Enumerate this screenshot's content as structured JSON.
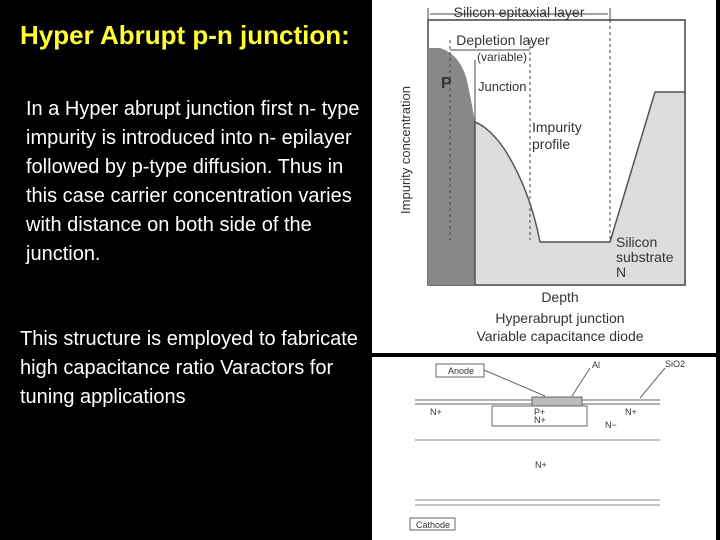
{
  "title": "Hyper Abrupt p-n junction:",
  "paragraphs": [
    "In a Hyper abrupt junction first n- type impurity is introduced into n- epilayer followed by p-type diffusion. Thus in this case carrier concentration varies with distance on both side of the junction.",
    "This structure is employed to fabricate high capacitance ratio Varactors for tuning applications"
  ],
  "figure_top": {
    "epitaxial_layer": "Silicon epitaxial layer",
    "depletion_layer": "Depletion layer",
    "variable": "(variable)",
    "junction": "Junction",
    "p_region": "P",
    "y_axis": "Impurity concentration",
    "profile": [
      "Impurity",
      "profile"
    ],
    "substrate": [
      "Silicon",
      "substrate",
      "N"
    ],
    "x_axis": "Depth",
    "caption": [
      "Hyperabrupt junction",
      "Variable capacitance diode"
    ]
  },
  "figure_bottom": {
    "anode": "Anode",
    "al": "Al",
    "sio2": "SiO2",
    "n_plus_left": "N+",
    "p_plus": "P+",
    "n_plus_center": "N+",
    "n_plus_right": "N+",
    "n_minus": "N−",
    "n_plus_bulk": "N+",
    "cathode": "Cathode"
  }
}
